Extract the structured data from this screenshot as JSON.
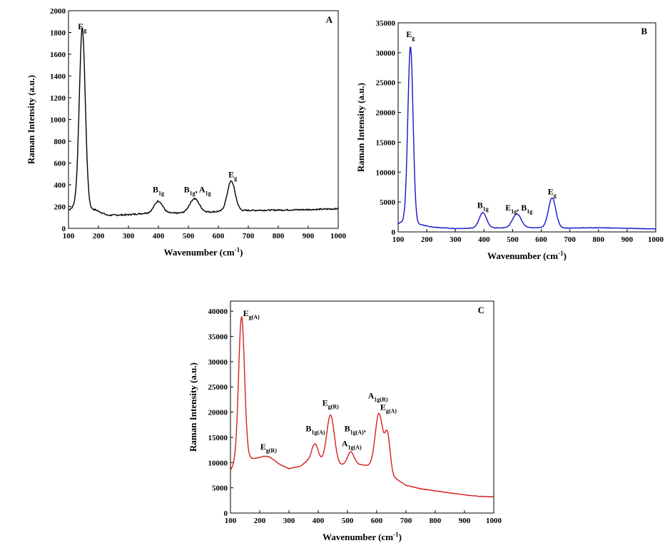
{
  "chart_data": [
    {
      "type": "line",
      "panel_label": "A",
      "xlabel": "Wavenumber (cm",
      "xlabel_sup": "-1",
      "xlabel_end": ")",
      "ylabel": "Raman Intensity (a.u.)",
      "xlim": [
        100,
        1000
      ],
      "ylim": [
        0,
        2000
      ],
      "xticks": [
        100,
        200,
        300,
        400,
        500,
        600,
        700,
        800,
        900,
        1000
      ],
      "yticks": [
        0,
        200,
        400,
        600,
        800,
        1000,
        1200,
        1400,
        1600,
        1800,
        2000
      ],
      "series": [
        {
          "name": "A",
          "color": "#000000",
          "baseline": [
            [
              100,
              170
            ],
            [
              120,
              200
            ],
            [
              190,
              170
            ],
            [
              230,
              120
            ],
            [
              300,
              125
            ],
            [
              360,
              140
            ],
            [
              500,
              140
            ],
            [
              600,
              155
            ],
            [
              700,
              165
            ],
            [
              800,
              168
            ],
            [
              900,
              172
            ],
            [
              1000,
              180
            ]
          ],
          "peaks": [
            [
              146,
              1650,
              10
            ],
            [
              400,
              110,
              14
            ],
            [
              520,
              130,
              16
            ],
            [
              643,
              275,
              13
            ]
          ]
        }
      ],
      "annotations": [
        {
          "id": "a0",
          "x": 146,
          "y": 1830,
          "parts": [
            {
              "t": "E",
              "s": false
            },
            {
              "t": "g",
              "s": true
            }
          ]
        },
        {
          "id": "a1",
          "x": 400,
          "y": 330,
          "parts": [
            {
              "t": "B",
              "s": false
            },
            {
              "t": "1g",
              "s": true
            }
          ]
        },
        {
          "id": "a2",
          "x": 530,
          "y": 330,
          "parts": [
            {
              "t": "B",
              "s": false
            },
            {
              "t": "1g",
              "s": true
            },
            {
              "t": ", A",
              "s": false
            },
            {
              "t": "1g",
              "s": true
            }
          ]
        },
        {
          "id": "a3",
          "x": 648,
          "y": 470,
          "parts": [
            {
              "t": "E",
              "s": false
            },
            {
              "t": "g",
              "s": true
            }
          ]
        }
      ]
    },
    {
      "type": "line",
      "panel_label": "B",
      "xlabel": "Wavenumber (cm",
      "xlabel_sup": "-1",
      "xlabel_end": ")",
      "ylabel": "Raman Intensity (a.u.)",
      "xlim": [
        100,
        1000
      ],
      "ylim": [
        0,
        35000
      ],
      "xticks": [
        100,
        200,
        300,
        400,
        500,
        600,
        700,
        800,
        900,
        1000
      ],
      "yticks": [
        0,
        5000,
        10000,
        15000,
        20000,
        25000,
        30000,
        35000
      ],
      "series": [
        {
          "name": "B",
          "color": "#1515c8",
          "baseline": [
            [
              100,
              1400
            ],
            [
              120,
              1800
            ],
            [
              180,
              1200
            ],
            [
              220,
              800
            ],
            [
              300,
              550
            ],
            [
              400,
              650
            ],
            [
              500,
              700
            ],
            [
              600,
              700
            ],
            [
              700,
              650
            ],
            [
              800,
              700
            ],
            [
              900,
              600
            ],
            [
              1000,
              500
            ]
          ],
          "peaks": [
            [
              143,
              29500,
              9
            ],
            [
              396,
              2600,
              13
            ],
            [
              515,
              2300,
              15
            ],
            [
              638,
              5000,
              13
            ]
          ]
        }
      ],
      "annotations": [
        {
          "id": "b0",
          "x": 143,
          "y": 32600,
          "parts": [
            {
              "t": "E",
              "s": false
            },
            {
              "t": "g",
              "s": true
            }
          ]
        },
        {
          "id": "b1",
          "x": 396,
          "y": 4000,
          "parts": [
            {
              "t": "B",
              "s": false
            },
            {
              "t": "1g",
              "s": true
            }
          ]
        },
        {
          "id": "b2",
          "x": 522,
          "y": 3600,
          "parts": [
            {
              "t": "E",
              "s": false
            },
            {
              "t": "1g",
              "s": true
            },
            {
              "t": ", B",
              "s": false
            },
            {
              "t": "1g",
              "s": true
            }
          ]
        },
        {
          "id": "b3",
          "x": 638,
          "y": 6300,
          "parts": [
            {
              "t": "E",
              "s": false
            },
            {
              "t": "g",
              "s": true
            }
          ]
        }
      ]
    },
    {
      "type": "line",
      "panel_label": "C",
      "xlabel": "Wavenumber (cm",
      "xlabel_sup": "-1",
      "xlabel_end": ")",
      "ylabel": "Raman Intensity (a.u.)",
      "xlim": [
        100,
        1000
      ],
      "ylim": [
        0,
        42000
      ],
      "xticks": [
        100,
        200,
        300,
        400,
        500,
        600,
        700,
        800,
        900,
        1000
      ],
      "yticks": [
        0,
        5000,
        10000,
        15000,
        20000,
        25000,
        30000,
        35000,
        40000
      ],
      "series": [
        {
          "name": "C",
          "color": "#d42020",
          "baseline": [
            [
              100,
              8500
            ],
            [
              130,
              11000
            ],
            [
              170,
              10800
            ],
            [
              200,
              10700
            ],
            [
              250,
              10000
            ],
            [
              300,
              8800
            ],
            [
              340,
              9300
            ],
            [
              380,
              11200
            ],
            [
              430,
              9700
            ],
            [
              480,
              9500
            ],
            [
              530,
              9700
            ],
            [
              560,
              9500
            ],
            [
              600,
              9000
            ],
            [
              660,
              7000
            ],
            [
              700,
              5500
            ],
            [
              750,
              4800
            ],
            [
              800,
              4400
            ],
            [
              850,
              4000
            ],
            [
              900,
              3600
            ],
            [
              950,
              3300
            ],
            [
              1000,
              3200
            ]
          ],
          "peaks": [
            [
              138,
              28000,
              10
            ],
            [
              227,
              900,
              20
            ],
            [
              390,
              2800,
              10
            ],
            [
              442,
              9800,
              13
            ],
            [
              511,
              2500,
              11
            ],
            [
              608,
              11000,
              13
            ],
            [
              637,
              7500,
              9
            ]
          ]
        }
      ],
      "annotations": [
        {
          "id": "c0",
          "x": 138,
          "y": 39000,
          "dx": 2,
          "anchor": "start",
          "parts": [
            {
              "t": "E",
              "s": false
            },
            {
              "t": "g(A)",
              "s": true
            }
          ]
        },
        {
          "id": "c1",
          "x": 230,
          "y": 12600,
          "parts": [
            {
              "t": "E",
              "s": false
            },
            {
              "t": "g(R)",
              "s": true
            }
          ]
        },
        {
          "id": "c2",
          "x": 390,
          "y": 16200,
          "parts": [
            {
              "t": "B",
              "s": false
            },
            {
              "t": "1g(A)",
              "s": true
            }
          ]
        },
        {
          "id": "c3",
          "x": 442,
          "y": 21300,
          "parts": [
            {
              "t": "E",
              "s": false
            },
            {
              "t": "g(R)",
              "s": true
            }
          ]
        },
        {
          "id": "c4",
          "x": 526,
          "y": 16200,
          "parts": [
            {
              "t": "B",
              "s": false
            },
            {
              "t": "1g(A)",
              "s": true
            },
            {
              "t": ",",
              "s": false
            }
          ]
        },
        {
          "id": "c5",
          "x": 514,
          "y": 13200,
          "parts": [
            {
              "t": "A",
              "s": false
            },
            {
              "t": "1g(A)",
              "s": true
            }
          ]
        },
        {
          "id": "c6",
          "x": 604,
          "y": 22700,
          "parts": [
            {
              "t": "A",
              "s": false
            },
            {
              "t": "1g(R)",
              "s": true
            }
          ]
        },
        {
          "id": "c7",
          "x": 640,
          "y": 20400,
          "parts": [
            {
              "t": "E",
              "s": false
            },
            {
              "t": "g(A)",
              "s": true
            }
          ]
        }
      ]
    }
  ]
}
